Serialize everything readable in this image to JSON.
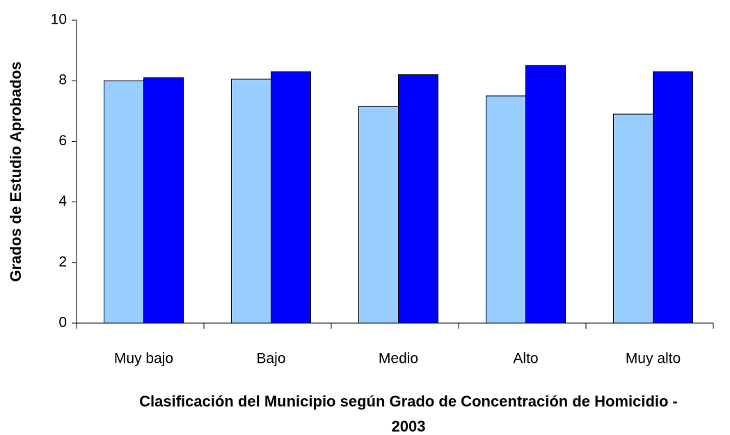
{
  "chart_data": {
    "type": "bar",
    "x_label": "Clasificación del Municipio según Grado de Concentración de Homicidio - 2003",
    "y_label": "Grados de Estudio Aprobados",
    "categories": [
      "Muy bajo",
      "Bajo",
      "Medio",
      "Alto",
      "Muy alto"
    ],
    "series": [
      {
        "color": "#99ccff",
        "values": [
          8.0,
          8.05,
          7.15,
          7.5,
          6.9
        ]
      },
      {
        "color": "#0000ff",
        "values": [
          8.1,
          8.3,
          8.2,
          8.5,
          8.3
        ]
      }
    ],
    "ylim": [
      0,
      10
    ],
    "yticks": [
      0,
      2,
      4,
      6,
      8,
      10
    ]
  }
}
